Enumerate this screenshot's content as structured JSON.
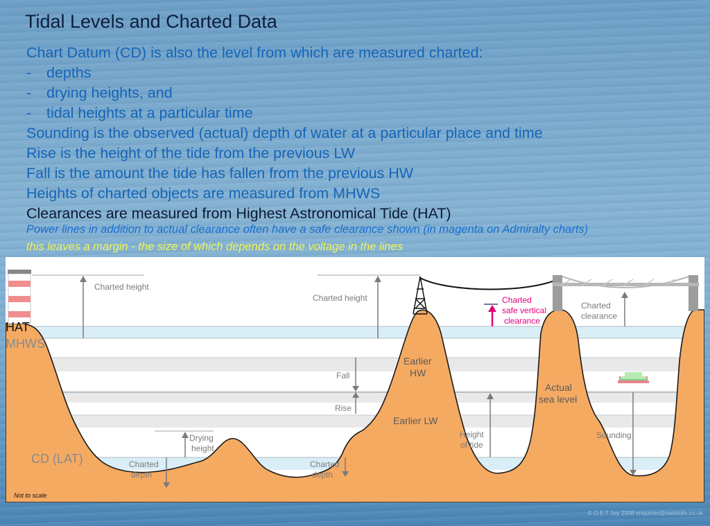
{
  "title": "Tidal Levels and Charted Data",
  "bullets": [
    {
      "text": "Chart Datum (CD) is also the level from which are measured charted:"
    },
    {
      "text": "depths",
      "dash": "-"
    },
    {
      "text": "drying heights, and",
      "dash": "-"
    },
    {
      "text": "tidal heights at a particular time",
      "dash": "-"
    },
    {
      "text": "Sounding is the observed (actual) depth of water at a particular place and time"
    },
    {
      "text": "Rise is the height of the tide from the previous LW"
    },
    {
      "text": "Fall is the amount the tide has fallen from the previous HW"
    },
    {
      "text": "Heights of charted objects are measured from MHWS"
    },
    {
      "text": "Clearances are measured from Highest Astronomical Tide (HAT)"
    }
  ],
  "notes": {
    "power_lines": "Power lines in addition to actual clearance often have a safe clearance shown (in magenta on Admiralty charts)",
    "margin": "this leaves a margin - the size of which depends on the voltage in the lines"
  },
  "diagram": {
    "levels": {
      "hat": "HAT",
      "mhws": "MHWS",
      "cd": "CD (LAT)"
    },
    "labels": {
      "charted_height_1": "Charted height",
      "charted_height_2": "Charted height",
      "charted_safe_1": "Charted",
      "charted_safe_2": "safe vertical",
      "charted_safe_3": "clearance",
      "charted_clearance_1": "Charted",
      "charted_clearance_2": "clearance",
      "earlier_hw_1": "Earlier",
      "earlier_hw_2": "HW",
      "fall": "Fall",
      "rise": "Rise",
      "earlier_lw": "Earlier LW",
      "actual_sea_1": "Actual",
      "actual_sea_2": "sea level",
      "drying_1": "Drying",
      "drying_2": "height",
      "height_tide_1": "Height",
      "height_tide_2": "of tide",
      "sounding": "Sounding",
      "charted_depth_1a": "Charted",
      "charted_depth_1b": "depth",
      "charted_depth_2a": "Charted",
      "charted_depth_2b": "depth",
      "not_to_scale": "Not to scale"
    },
    "colors": {
      "land": "#f5aa62",
      "water": "#daeef7",
      "magenta": "#e0007a",
      "hat_label": "#111111",
      "mhws_label": "#8a8a8a",
      "cd_label": "#8a8a8a"
    }
  },
  "copyright": "© O E T Joy 2008 enquiries@sailskills.co.uk"
}
